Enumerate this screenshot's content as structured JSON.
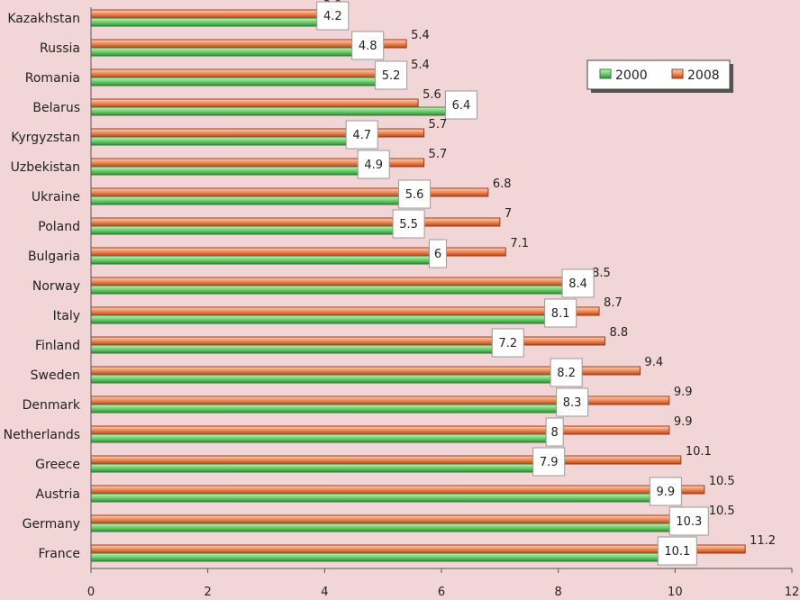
{
  "chart_data": {
    "type": "bar",
    "orientation": "horizontal",
    "title": "",
    "xlabel": "",
    "ylabel": "",
    "xlim": [
      0,
      12
    ],
    "x_ticks": [
      0,
      2,
      4,
      6,
      8,
      10,
      12
    ],
    "grid": false,
    "legend_position": "top-right",
    "categories": [
      "Kazakhstan",
      "Russia",
      "Romania",
      "Belarus",
      "Kyrgyzstan",
      "Uzbekistan",
      "Ukraine",
      "Poland",
      "Bulgaria",
      "Norway",
      "Italy",
      "Finland",
      "Sweden",
      "Denmark",
      "Netherlands",
      "Greece",
      "Austria",
      "Germany",
      "France"
    ],
    "series": [
      {
        "name": "2000",
        "color": "#3daa4a",
        "values": [
          4.2,
          4.8,
          5.2,
          6.4,
          4.7,
          4.9,
          5.6,
          5.5,
          6,
          8.4,
          8.1,
          7.2,
          8.2,
          8.3,
          8,
          7.9,
          9.9,
          10.3,
          10.1
        ]
      },
      {
        "name": "2008",
        "color": "#e8733a",
        "values": [
          3.9,
          5.4,
          5.4,
          5.6,
          5.7,
          5.7,
          6.8,
          7,
          7.1,
          8.5,
          8.7,
          8.8,
          9.4,
          9.9,
          9.9,
          10.1,
          10.5,
          10.5,
          11.2
        ]
      }
    ]
  }
}
